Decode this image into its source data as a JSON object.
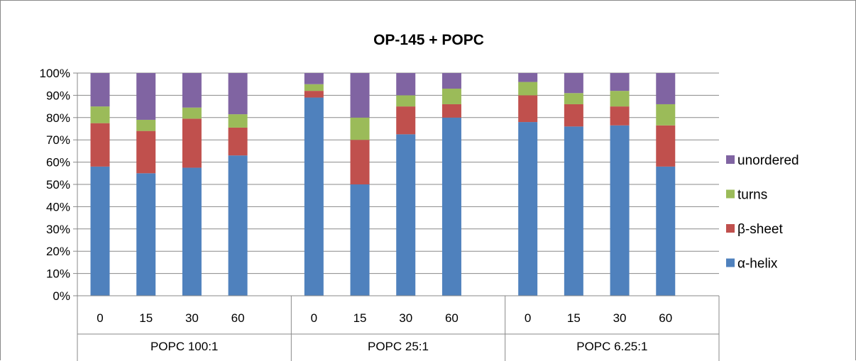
{
  "chart_data": {
    "type": "bar",
    "stacked": true,
    "percent": true,
    "title": "OP-145 + POPC",
    "xlabel": "",
    "ylabel": "",
    "ylim": [
      0,
      100
    ],
    "y_ticks": [
      "0%",
      "10%",
      "20%",
      "30%",
      "40%",
      "50%",
      "60%",
      "70%",
      "80%",
      "90%",
      "100%"
    ],
    "groups": [
      {
        "label": "POPC 100:1",
        "categories": [
          "0",
          "15",
          "30",
          "60"
        ]
      },
      {
        "label": "POPC 25:1",
        "categories": [
          "0",
          "15",
          "30",
          "60"
        ]
      },
      {
        "label": "POPC 6.25:1",
        "categories": [
          "0",
          "15",
          "30",
          "60"
        ]
      }
    ],
    "series": [
      {
        "name": "α-helix",
        "color": "#4f81bd",
        "values": [
          58,
          55,
          57.5,
          63,
          89,
          50,
          72.5,
          80,
          78,
          76,
          76.5,
          58
        ]
      },
      {
        "name": "β-sheet",
        "color": "#c0504d",
        "values": [
          19.5,
          19,
          22,
          12.5,
          3,
          20,
          12.5,
          6,
          12,
          10,
          8.5,
          18.5
        ]
      },
      {
        "name": "turns",
        "color": "#9bbb59",
        "values": [
          7.5,
          5,
          5,
          6,
          3,
          10,
          5,
          7,
          6,
          5,
          7,
          9.5
        ]
      },
      {
        "name": "unordered",
        "color": "#8064a2",
        "values": [
          15,
          21,
          15.5,
          18.5,
          5,
          20,
          10,
          7,
          4,
          9,
          8,
          14
        ]
      }
    ],
    "legend_position": "right",
    "legend_order": [
      "unordered",
      "turns",
      "β-sheet",
      "α-helix"
    ],
    "grid": true
  }
}
